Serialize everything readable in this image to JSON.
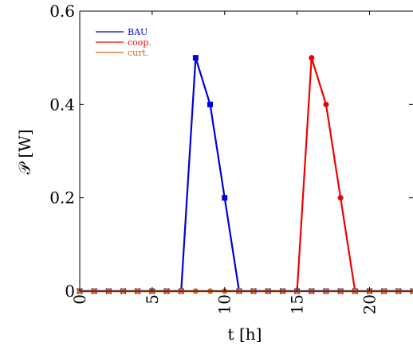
{
  "chart_data": {
    "type": "line",
    "title": "",
    "xlabel": "t [h]",
    "ylabel": "𝒫 [W]",
    "xlim": [
      0,
      23
    ],
    "ylim": [
      0,
      0.6
    ],
    "x_ticks": [
      0,
      5,
      10,
      15,
      20
    ],
    "x_tick_labels": [
      "0",
      "5",
      "10",
      "15",
      "20"
    ],
    "y_ticks": [
      0,
      0.2,
      0.4,
      0.6
    ],
    "y_tick_labels": [
      "0",
      "0.2",
      "0.4",
      "0.6"
    ],
    "grid": false,
    "legend_position": "top-left",
    "series": [
      {
        "name": "BAU",
        "color": "#0000dd",
        "marker": "square",
        "x": [
          0,
          1,
          2,
          3,
          4,
          5,
          6,
          7,
          8,
          9,
          10,
          11,
          12,
          13,
          14,
          15,
          16,
          17,
          18,
          19,
          20,
          21,
          22,
          23
        ],
        "y": [
          0,
          0,
          0,
          0,
          0,
          0,
          0,
          0,
          0.5,
          0.4,
          0.2,
          0,
          0,
          0,
          0,
          0,
          0,
          0,
          0,
          0,
          0,
          0,
          0,
          0
        ]
      },
      {
        "name": "coop.",
        "color": "#ee0000",
        "marker": "circle",
        "x": [
          0,
          1,
          2,
          3,
          4,
          5,
          6,
          7,
          8,
          9,
          10,
          11,
          12,
          13,
          14,
          15,
          16,
          17,
          18,
          19,
          20,
          21,
          22,
          23
        ],
        "y": [
          0,
          0,
          0,
          0,
          0,
          0,
          0,
          0,
          0,
          0,
          0,
          0,
          0,
          0,
          0,
          0,
          0.5,
          0.4,
          0.2,
          0,
          0,
          0,
          0,
          0
        ]
      },
      {
        "name": "curt.",
        "color": "#d2691e",
        "marker": "circle",
        "x": [
          0,
          1,
          2,
          3,
          4,
          5,
          6,
          7,
          8,
          9,
          10,
          11,
          12,
          13,
          14,
          15,
          16,
          17,
          18,
          19,
          20,
          21,
          22,
          23
        ],
        "y": [
          0,
          0,
          0,
          0,
          0,
          0,
          0,
          0,
          0,
          0,
          0,
          0,
          0,
          0,
          0,
          0,
          0,
          0,
          0,
          0,
          0,
          0,
          0,
          0
        ]
      }
    ]
  }
}
